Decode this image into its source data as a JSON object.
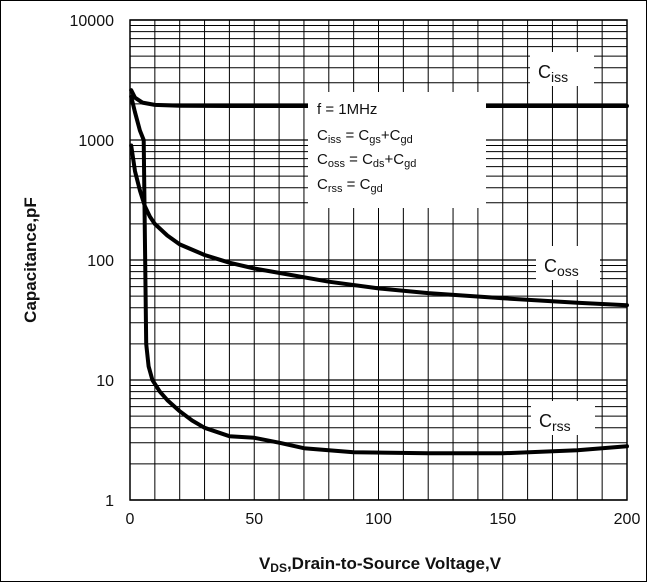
{
  "chart_data": {
    "type": "line",
    "xlabel": {
      "main": "V",
      "sub": "DS",
      "rest": ",Drain-to-Source Voltage,V"
    },
    "ylabel": "Capacitance,pF",
    "xlim": [
      0,
      200
    ],
    "ylim": [
      1,
      10000
    ],
    "yscale": "log",
    "grid": true,
    "x_ticks": [
      0,
      50,
      100,
      150,
      200
    ],
    "x_tick_labels": [
      "0",
      "50",
      "100",
      "150",
      "200"
    ],
    "y_ticks": [
      1,
      10,
      100,
      1000,
      10000
    ],
    "y_tick_labels": [
      "1",
      "10",
      "100",
      "1000",
      "10000"
    ],
    "annotation": {
      "freq": "f = 1MHz",
      "eq_iss": {
        "l": "C",
        "ls": "iss",
        "mid": " = C",
        "a": "gs",
        "plus": "+C",
        "b": "gd"
      },
      "eq_oss": {
        "l": "C",
        "ls": "oss",
        "mid": " = C",
        "a": "ds",
        "plus": "+C",
        "b": "gd"
      },
      "eq_rss": {
        "l": "C",
        "ls": "rss",
        "mid": " = C",
        "a": "gd"
      }
    },
    "series": [
      {
        "name": {
          "main": "C",
          "sub": "iss"
        },
        "x": [
          0.5,
          2,
          5,
          10,
          20,
          40,
          60,
          100,
          150,
          200
        ],
        "y": [
          2600,
          2250,
          2050,
          1960,
          1930,
          1920,
          1920,
          1920,
          1920,
          1920
        ]
      },
      {
        "name": {
          "main": "C",
          "sub": "oss"
        },
        "x": [
          0.5,
          2,
          4,
          6,
          8,
          10,
          15,
          20,
          30,
          40,
          50,
          60,
          80,
          100,
          120,
          150,
          180,
          200
        ],
        "y": [
          900,
          550,
          380,
          280,
          230,
          200,
          160,
          135,
          110,
          95,
          85,
          78,
          66,
          58,
          53,
          48,
          44,
          42
        ]
      },
      {
        "name": {
          "main": "C",
          "sub": "rss"
        },
        "x": [
          0.5,
          2,
          4,
          5.5,
          6.5,
          7.5,
          9,
          12,
          15,
          20,
          25,
          30,
          40,
          50,
          60,
          70,
          90,
          120,
          150,
          180,
          200
        ],
        "y": [
          2300,
          1700,
          1200,
          1000,
          20,
          13,
          10,
          8,
          6.8,
          5.5,
          4.6,
          4.0,
          3.4,
          3.3,
          3.0,
          2.7,
          2.5,
          2.45,
          2.45,
          2.6,
          2.8
        ]
      }
    ]
  }
}
